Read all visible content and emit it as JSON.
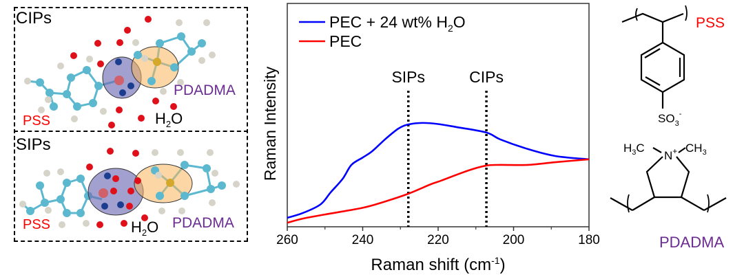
{
  "left_panel": {
    "cips": {
      "title": "CIPs",
      "pss_label": "PSS",
      "pdadma_label": "PDADMA",
      "water_label_main": "H",
      "water_label_sub": "2",
      "water_label_end": "O"
    },
    "sips": {
      "title": "SIPs",
      "pss_label": "PSS",
      "pdadma_label": "PDADMA",
      "water_label_main": "H",
      "water_label_sub": "2",
      "water_label_end": "O"
    }
  },
  "structures": {
    "pss": {
      "name": "PSS",
      "group": "SO",
      "group_sub": "3",
      "group_sup": "-",
      "color": "#ff0000"
    },
    "pdadma": {
      "name": "PDADMA",
      "methyl_left": "H",
      "methyl_left_sub": "3",
      "methyl_left_end": "C",
      "nitrogen": "N",
      "nitrogen_sup": "+",
      "methyl_right": "CH",
      "methyl_right_sub": "3",
      "color": "#6a2c91"
    }
  },
  "chart_data": {
    "type": "line",
    "title": "",
    "xlabel": "Raman shift (cm",
    "xlabel_sup": "-1",
    "xlabel_end": ")",
    "ylabel": "Raman Intensity",
    "xlim": [
      260,
      180
    ],
    "ylim": [
      0,
      1
    ],
    "xticks": [
      260,
      240,
      220,
      200,
      180
    ],
    "xtick_labels": [
      "260",
      "240",
      "220",
      "200",
      "180"
    ],
    "minor_xticks": [
      250,
      230,
      210,
      190
    ],
    "yticks_shown": false,
    "grid": false,
    "legend": {
      "placement": "top-left",
      "entries": [
        {
          "label": "PEC + 24 wt% H",
          "sub": "2",
          "end": "O",
          "color": "#0000ff"
        },
        {
          "label": "PEC",
          "sub": "",
          "end": "",
          "color": "#ff0000"
        }
      ]
    },
    "series": [
      {
        "name": "PEC + 24 wt% H2O",
        "color": "#0000ff",
        "x": [
          260,
          255.8,
          251.2,
          248.5,
          245.3,
          243,
          240,
          237.5,
          233.9,
          230.5,
          227.9,
          224.2,
          220,
          215,
          207.2,
          203.5,
          196.2,
          189,
          180
        ],
        "y": [
          0.04,
          0.062,
          0.1,
          0.154,
          0.215,
          0.277,
          0.31,
          0.338,
          0.394,
          0.44,
          0.458,
          0.465,
          0.46,
          0.446,
          0.422,
          0.391,
          0.348,
          0.317,
          0.302
        ]
      },
      {
        "name": "PEC",
        "color": "#ff0000",
        "x": [
          260,
          255.8,
          250,
          240,
          233.9,
          227.9,
          222,
          219.3,
          212,
          207.2,
          203.5,
          196.2,
          189,
          180
        ],
        "y": [
          0.018,
          0.037,
          0.055,
          0.085,
          0.114,
          0.148,
          0.19,
          0.206,
          0.252,
          0.274,
          0.277,
          0.277,
          0.289,
          0.302
        ]
      }
    ],
    "annotations": [
      {
        "label": "SIPs",
        "x": 227.9,
        "style": "dotted-vertical"
      },
      {
        "label": "CIPs",
        "x": 207.2,
        "style": "dotted-vertical"
      }
    ]
  }
}
